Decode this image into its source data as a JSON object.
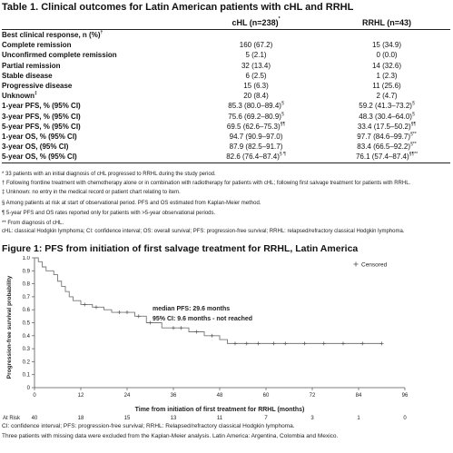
{
  "table": {
    "title": "Table 1. Clinical outcomes for Latin American patients with cHL and RRHL",
    "col_chl": "cHL (n=238)",
    "col_chl_sup": "*",
    "col_rrhl": "RRHL (n=43)",
    "rows": [
      {
        "label": "Best clinical response, n (%)",
        "sup": "†",
        "chl": "",
        "chl_sup": "",
        "rrhl": "",
        "rrhl_sup": "",
        "indent": false
      },
      {
        "label": "Complete remission",
        "sup": "",
        "chl": "160 (67.2)",
        "chl_sup": "",
        "rrhl": "15 (34.9)",
        "rrhl_sup": "",
        "indent": true
      },
      {
        "label": "Unconfirmed complete remission",
        "sup": "",
        "chl": "5 (2.1)",
        "chl_sup": "",
        "rrhl": "0 (0.0)",
        "rrhl_sup": "",
        "indent": true
      },
      {
        "label": "Partial remission",
        "sup": "",
        "chl": "32 (13.4)",
        "chl_sup": "",
        "rrhl": "14 (32.6)",
        "rrhl_sup": "",
        "indent": true
      },
      {
        "label": "Stable disease",
        "sup": "",
        "chl": "6 (2.5)",
        "chl_sup": "",
        "rrhl": "1 (2.3)",
        "rrhl_sup": "",
        "indent": true
      },
      {
        "label": "Progressive disease",
        "sup": "",
        "chl": "15 (6.3)",
        "chl_sup": "",
        "rrhl": "11 (25.6)",
        "rrhl_sup": "",
        "indent": true
      },
      {
        "label": "Unknown",
        "sup": "‡",
        "chl": "20 (8.4)",
        "chl_sup": "",
        "rrhl": "2 (4.7)",
        "rrhl_sup": "",
        "indent": true
      },
      {
        "label": "1-year PFS, % (95% CI)",
        "sup": "",
        "chl": "85.3 (80.0–89.4)",
        "chl_sup": "§",
        "rrhl": "59.2 (41.3–73.2)",
        "rrhl_sup": "§",
        "indent": false
      },
      {
        "label": "3-year PFS, % (95% CI)",
        "sup": "",
        "chl": "75.6 (69.2–80.9)",
        "chl_sup": "§",
        "rrhl": "48.3 (30.4–64.0)",
        "rrhl_sup": "§",
        "indent": false
      },
      {
        "label": "5-year PFS, % (95% CI)",
        "sup": "",
        "chl": "69.5 (62.6–75.3)",
        "chl_sup": "§¶",
        "rrhl": "33.4 (17.5–50.2)",
        "rrhl_sup": "§¶",
        "indent": false
      },
      {
        "label": "1-year OS, % (95% CI)",
        "sup": "",
        "chl": "94.7 (90.9–97.0)",
        "chl_sup": "",
        "rrhl": "97.7 (84.6–99.7)",
        "rrhl_sup": "§**",
        "indent": false
      },
      {
        "label": "3-year OS, (95% CI)",
        "sup": "",
        "chl": "87.9 (82.5–91.7)",
        "chl_sup": "",
        "rrhl": "83.4 (66.5–92.2)",
        "rrhl_sup": "§**",
        "indent": false
      },
      {
        "label": "5-year OS, % (95% CI)",
        "sup": "",
        "chl": "82.6 (76.4–87.4)",
        "chl_sup": "§ ¶",
        "rrhl": "76.1 (57.4–87.4)",
        "rrhl_sup": "§¶**",
        "indent": false
      }
    ]
  },
  "footnotes": [
    "* 33 patients with an initial diagnosis of cHL progressed to RRHL during the study period.",
    "† Following frontline treatment with chemotherapy alone or in combination with radiotherapy for patients with cHL; following first salvage treatment for patients with RRHL.",
    "‡ Unknown: no entry in the medical record or patient chart relating to item.",
    "§ Among patients at risk at start of observational period. PFS and OS estimated from Kaplan-Meier method.",
    "¶ 5-year PFS and OS rates reported only for patients with >5-year observational periods.",
    "** From diagnosis of cHL.",
    "cHL: classical Hodgkin lymphoma; CI: confidence interval; OS: overall survival; PFS: progression-free survival; RRHL: relapsed/refractory classical Hodgkin lymphoma."
  ],
  "figure": {
    "title": "Figure 1: PFS from initiation of first salvage treatment for RRHL, Latin America",
    "annotation_line1": "median PFS: 29.6 months",
    "annotation_line2": "95% CI: 9.6 months - not reached",
    "at_risk_label": "At Risk",
    "caption1": "CI: confidence interval; PFS: progression-free survival; RRHL: Relapsed/refractory classical Hodgkin lymphoma.",
    "caption2": "Three patients with missing data were excluded from the Kaplan-Meier analysis. Latin America: Argentina, Colombia and Mexico."
  },
  "chart_data": {
    "type": "line",
    "title": "Figure 1: PFS from initiation of first salvage treatment for RRHL, Latin America",
    "xlabel": "Time from initiation of first treatment for RRHL (months)",
    "ylabel": "Progression-free survival probability",
    "xlim": [
      0,
      96
    ],
    "ylim": [
      0,
      1.0
    ],
    "xticks": [
      0,
      12,
      24,
      36,
      48,
      60,
      72,
      84,
      96
    ],
    "yticks": [
      0,
      0.1,
      0.2,
      0.3,
      0.4,
      0.5,
      0.6,
      0.7,
      0.8,
      0.9,
      1.0
    ],
    "ytick_labels": [
      "0",
      "0.1",
      "0.2",
      "0.3",
      "0.4",
      "0.5",
      "0.6",
      "0.7",
      "0.8",
      "0.9",
      "1.0"
    ],
    "legend": "top-right",
    "legend_label": "Censored",
    "series": [
      {
        "steps": [
          [
            0,
            1.0
          ],
          [
            1,
            0.97
          ],
          [
            2,
            0.93
          ],
          [
            3,
            0.9
          ],
          [
            5,
            0.87
          ],
          [
            6,
            0.82
          ],
          [
            7,
            0.78
          ],
          [
            8,
            0.74
          ],
          [
            9,
            0.7
          ],
          [
            10,
            0.67
          ],
          [
            12,
            0.64
          ],
          [
            15,
            0.62
          ],
          [
            18,
            0.6
          ],
          [
            20,
            0.58
          ],
          [
            26,
            0.55
          ],
          [
            29,
            0.5
          ],
          [
            33,
            0.46
          ],
          [
            40,
            0.43
          ],
          [
            44,
            0.4
          ],
          [
            48,
            0.37
          ],
          [
            50,
            0.34
          ],
          [
            90,
            0.34
          ]
        ],
        "censored": [
          [
            13,
            0.64
          ],
          [
            16,
            0.62
          ],
          [
            22,
            0.58
          ],
          [
            24,
            0.58
          ],
          [
            27,
            0.55
          ],
          [
            30,
            0.5
          ],
          [
            36,
            0.46
          ],
          [
            38,
            0.46
          ],
          [
            42,
            0.43
          ],
          [
            46,
            0.4
          ],
          [
            52,
            0.34
          ],
          [
            55,
            0.34
          ],
          [
            58,
            0.34
          ],
          [
            62,
            0.34
          ],
          [
            65,
            0.34
          ],
          [
            70,
            0.34
          ],
          [
            75,
            0.34
          ],
          [
            80,
            0.34
          ],
          [
            85,
            0.34
          ],
          [
            90,
            0.34
          ]
        ]
      }
    ],
    "at_risk": [
      40,
      18,
      15,
      13,
      11,
      7,
      3,
      1,
      0
    ]
  }
}
